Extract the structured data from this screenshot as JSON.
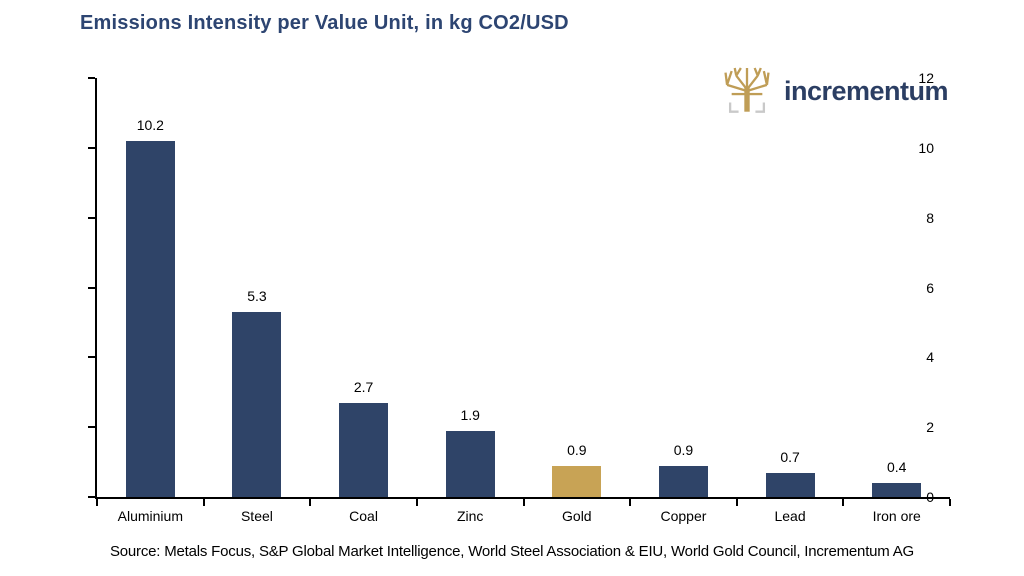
{
  "header": {
    "title": "Emissions Intensity per Value Unit, in kg CO2/USD"
  },
  "logo": {
    "text": "incrementum",
    "icon": "tree-icon",
    "tree_color": "#bf9d56",
    "bracket_color": "#c9c9c9",
    "text_color": "#2b3e63"
  },
  "footer": {
    "source": "Source: Metals Focus, S&P Global Market Intelligence, World Steel Association & EIU, World Gold Council, Incrementum AG"
  },
  "chart_data": {
    "type": "bar",
    "title": "Emissions Intensity per Value Unit, in kg CO2/USD",
    "categories": [
      "Aluminium",
      "Steel",
      "Coal",
      "Zinc",
      "Gold",
      "Copper",
      "Lead",
      "Iron ore"
    ],
    "values": [
      10.2,
      5.3,
      2.7,
      1.9,
      0.9,
      0.9,
      0.7,
      0.4
    ],
    "value_labels": [
      "10.2",
      "5.3",
      "2.7",
      "1.9",
      "0.9",
      "0.9",
      "0.7",
      "0.4"
    ],
    "xlabel": "",
    "ylabel": "",
    "ylim": [
      0,
      12
    ],
    "yticks": [
      0,
      2,
      4,
      6,
      8,
      10,
      12
    ],
    "grid": false,
    "legend": null,
    "bar_default_color": "#2f4468",
    "highlight_category": "Gold",
    "highlight_color": "#c8a355",
    "axis_color": "#000000"
  }
}
